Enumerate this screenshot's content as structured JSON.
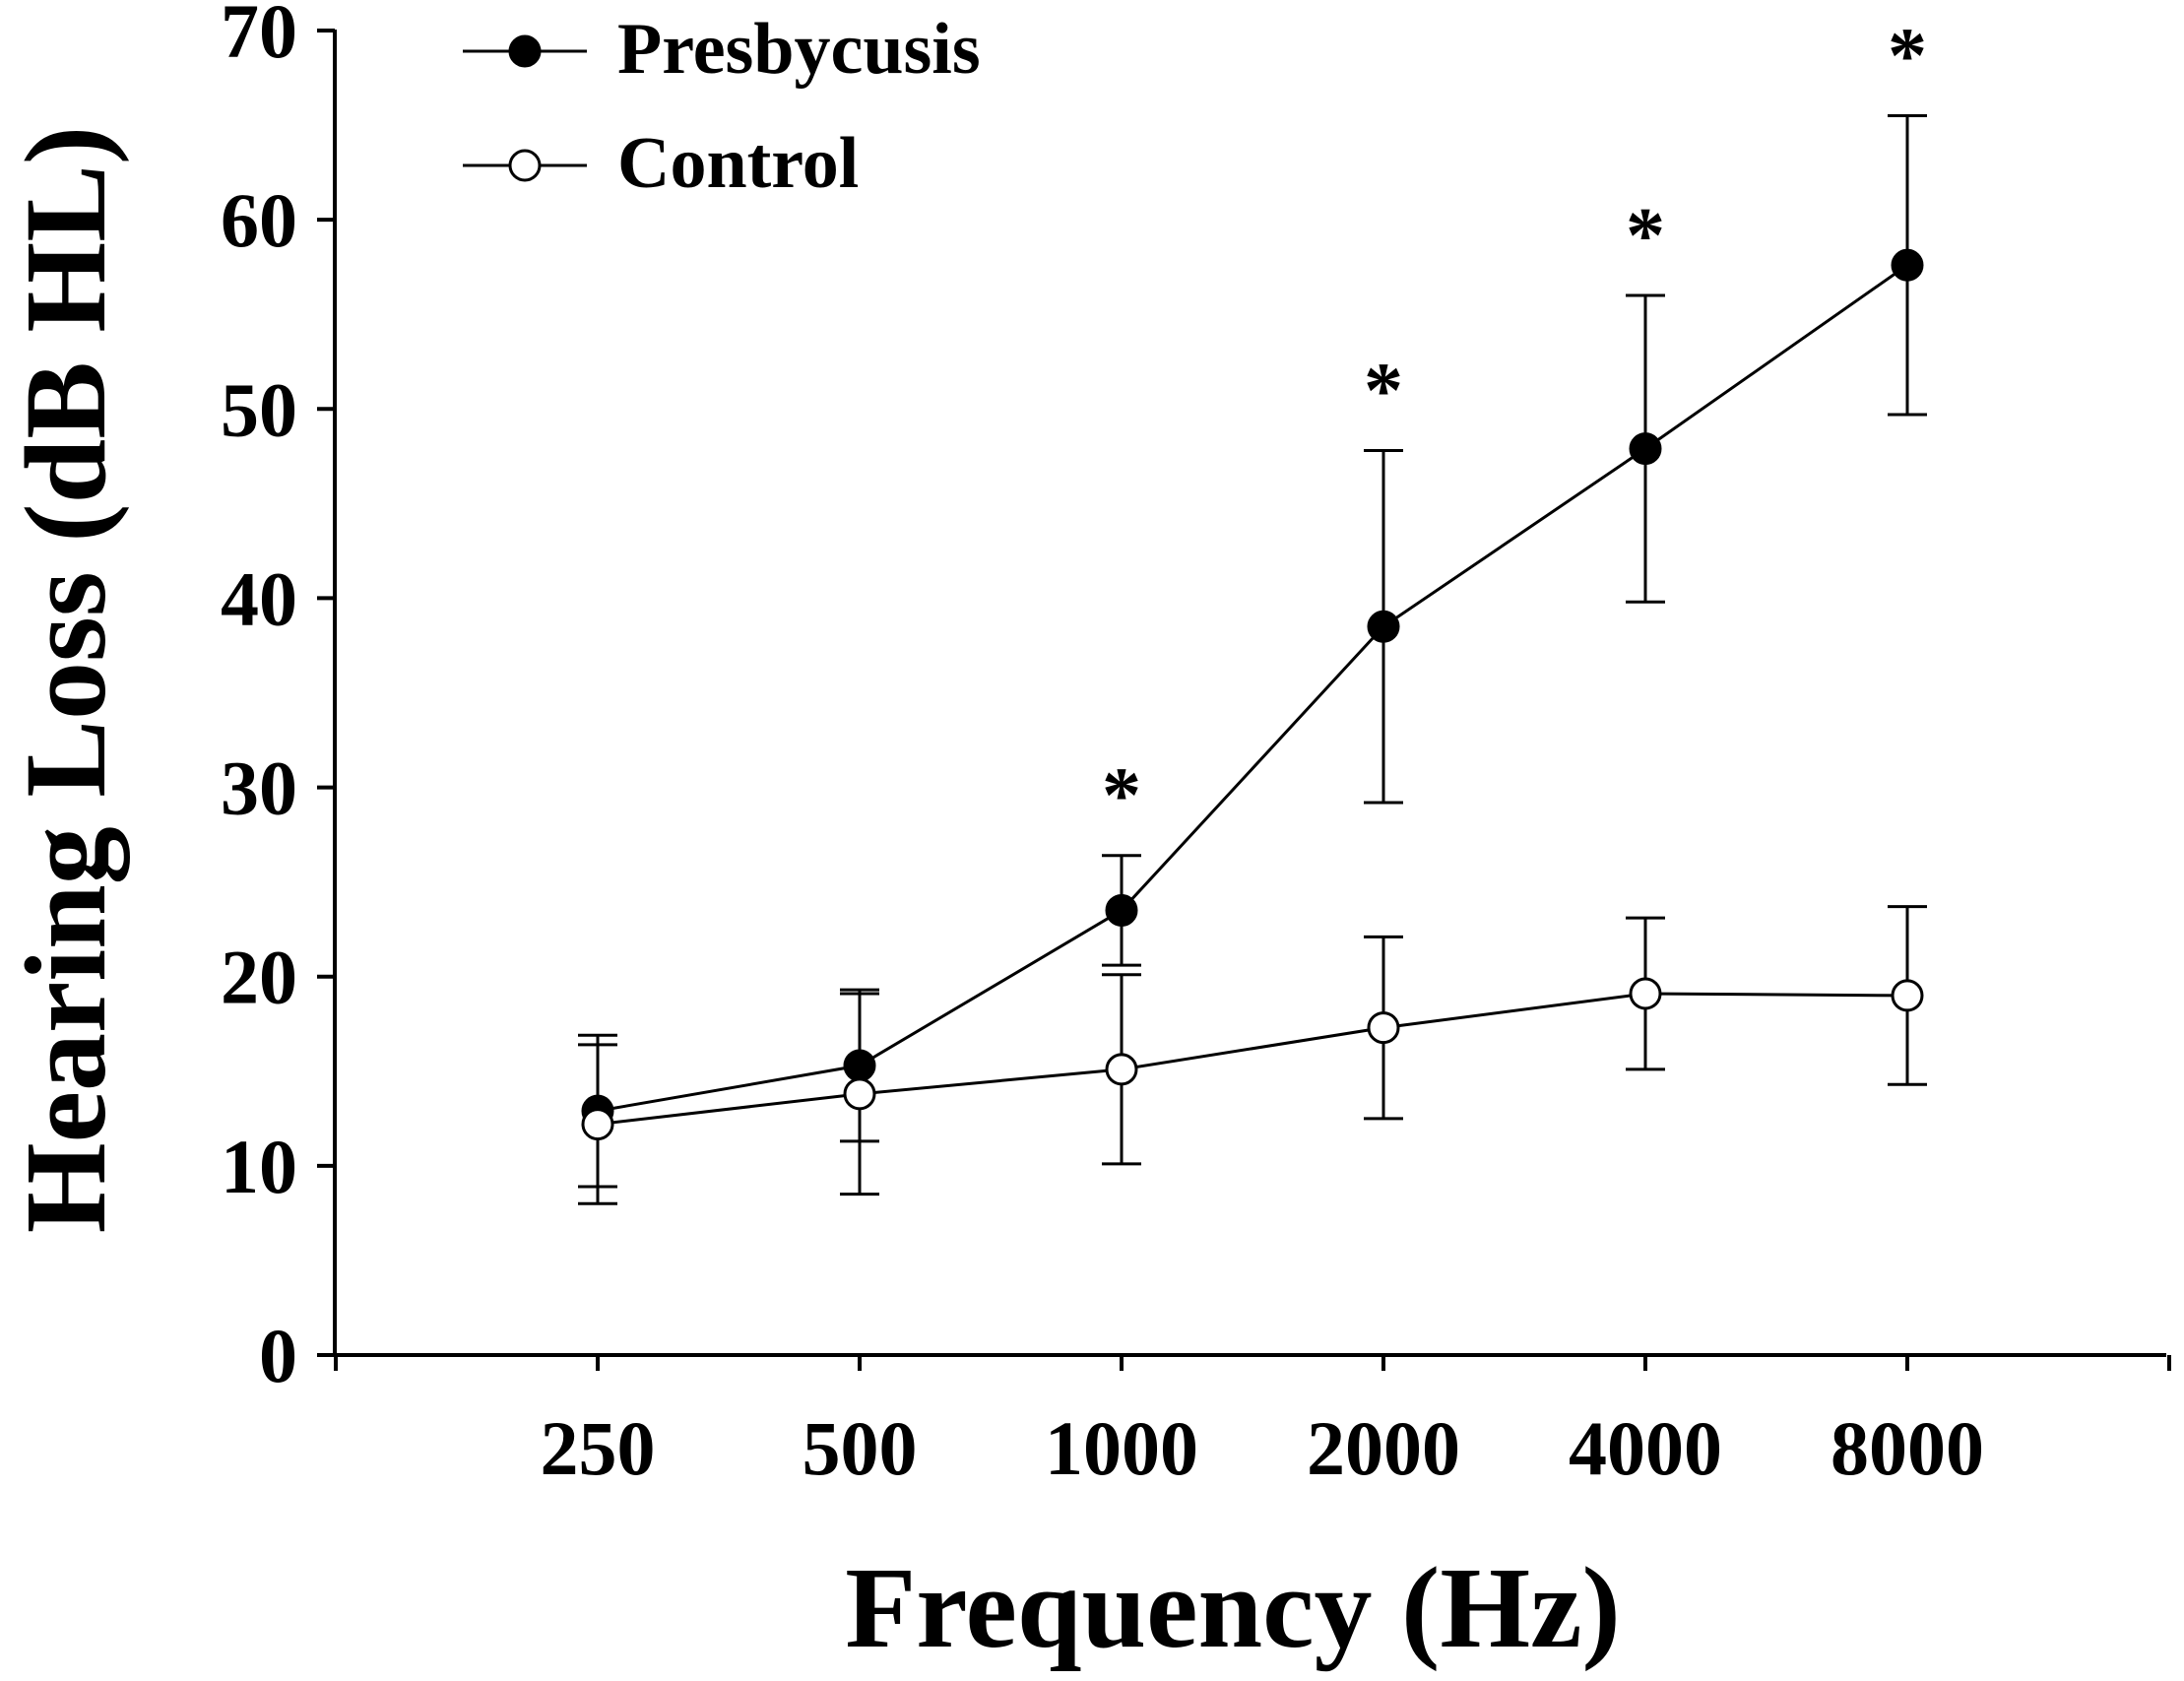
{
  "chart_data": {
    "type": "line",
    "title": "",
    "xlabel": "Frequency (Hz)",
    "ylabel": "Hearing Loss (dB HL)",
    "ylim": [
      0,
      70
    ],
    "yticks": [
      "0",
      "10",
      "20",
      "30",
      "40",
      "50",
      "60",
      "70"
    ],
    "categories": [
      "250",
      "500",
      "1000",
      "2000",
      "4000",
      "8000"
    ],
    "significance_marker": "*",
    "significant": [
      false,
      false,
      true,
      true,
      true,
      true
    ],
    "legend_position": "top-left",
    "series": [
      {
        "name": "Presbycusis",
        "marker": "filled-circle",
        "values": [
          12.9,
          15.3,
          23.5,
          38.5,
          47.9,
          57.6
        ],
        "error": [
          4.0,
          4.0,
          2.9,
          9.3,
          8.1,
          7.9
        ]
      },
      {
        "name": "Control",
        "marker": "open-circle",
        "values": [
          12.2,
          13.8,
          15.1,
          17.3,
          19.1,
          19.0
        ],
        "error": [
          4.2,
          5.3,
          5.0,
          4.8,
          4.0,
          4.7
        ]
      }
    ]
  }
}
